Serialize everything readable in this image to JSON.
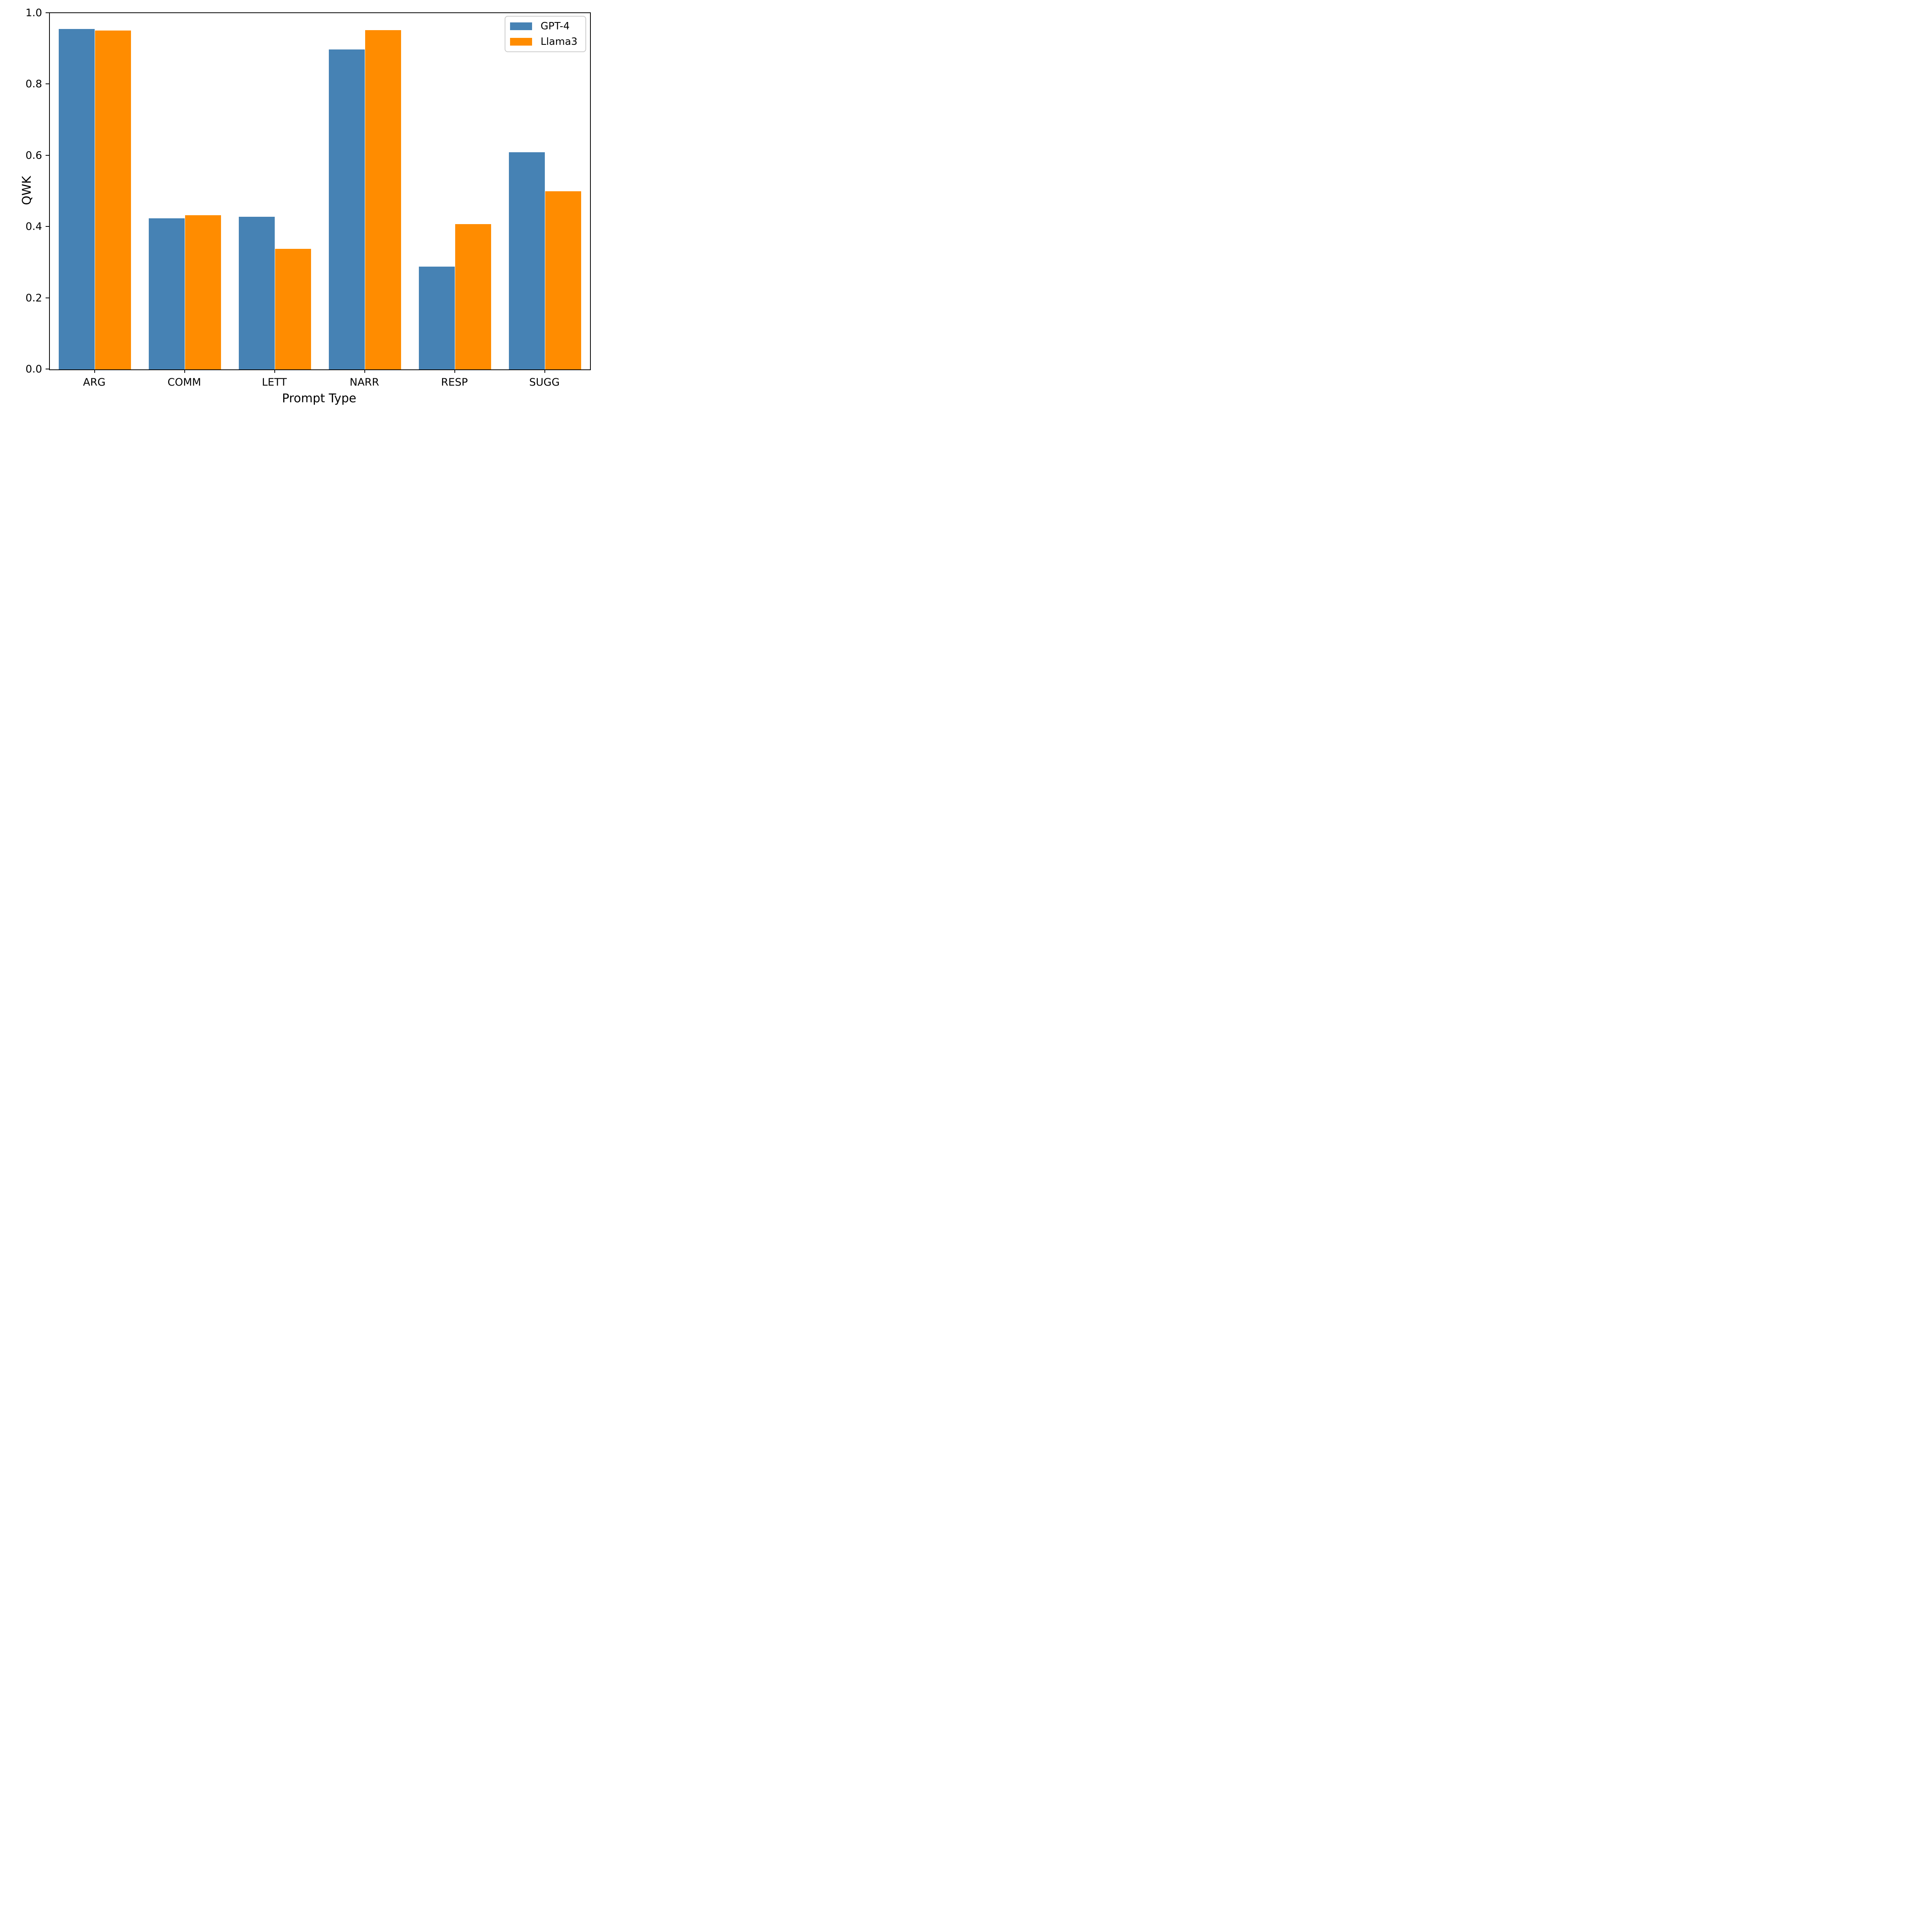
{
  "chart_data": {
    "type": "bar",
    "title": "",
    "categories": [
      "ARG",
      "COMM",
      "LETT",
      "NARR",
      "RESP",
      "SUGG"
    ],
    "series": [
      {
        "name": "GPT-4",
        "color": "#4682B4",
        "values": [
          0.955,
          0.424,
          0.428,
          0.898,
          0.288,
          0.61
        ]
      },
      {
        "name": "Llama3",
        "color": "#FF8C00",
        "values": [
          0.951,
          0.433,
          0.338,
          0.952,
          0.408,
          0.5
        ]
      }
    ],
    "xlabel": "Prompt Type",
    "ylabel": "QWK",
    "ylim": [
      0.0,
      1.0
    ],
    "yticks": [
      "0.0",
      "0.2",
      "0.4",
      "0.6",
      "0.8",
      "1.0"
    ],
    "grid": false,
    "legend_position": "upper right",
    "bar_group_fraction": 0.8,
    "axis_color": "#000000",
    "background_color": "#ffffff"
  }
}
